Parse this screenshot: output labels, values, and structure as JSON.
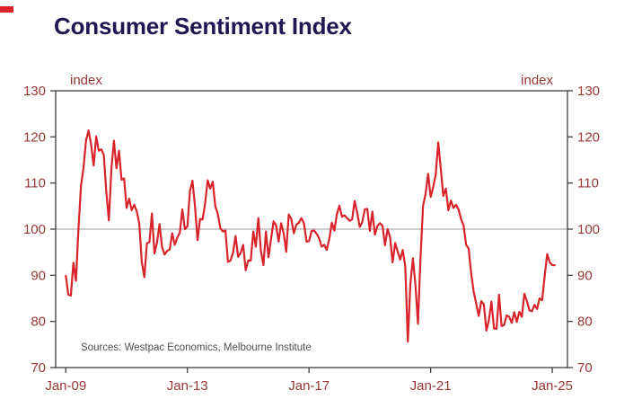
{
  "page": {
    "title": "Consumer Sentiment Index"
  },
  "chart": {
    "left_axis_label": "index",
    "right_axis_label": "index",
    "source": "Sources: Westpac Economics, Melbourne Institute"
  },
  "colors": {
    "title": "#1f1752",
    "line": "#d8232a",
    "tick_label": "#953735",
    "axis": "#3f3f3f",
    "reference_line": "#9a9a9a",
    "source_text": "#4d4d4f",
    "accent_mark": "#d8232a"
  },
  "chart_data": {
    "type": "line",
    "title": "Consumer Sentiment Index",
    "ylabel": "index",
    "ylim": [
      70,
      130
    ],
    "y_ticks": [
      70,
      80,
      90,
      100,
      110,
      120,
      130
    ],
    "x_ticks": [
      {
        "label": "Jan-09",
        "month": 0
      },
      {
        "label": "Jan-13",
        "month": 48
      },
      {
        "label": "Jan-17",
        "month": 96
      },
      {
        "label": "Jan-21",
        "month": 144
      },
      {
        "label": "Jan-25",
        "month": 192
      }
    ],
    "reference_line": 100,
    "grid": false,
    "legend": "none",
    "frequency": "monthly",
    "x_start": "2009-01",
    "source": "Sources: Westpac Economics, Melbourne Institute",
    "series": [
      {
        "name": "Consumer Sentiment Index",
        "color": "#d8232a",
        "values": [
          89.9,
          85.8,
          85.6,
          92.7,
          88.8,
          100.1,
          109.4,
          113.4,
          119.3,
          121.4,
          118.3,
          113.8,
          120.1,
          117.0,
          117.3,
          116.1,
          108.0,
          101.9,
          113.1,
          119.2,
          113.2,
          117.0,
          110.7,
          111.0,
          104.6,
          106.6,
          104.1,
          105.3,
          103.9,
          101.2,
          92.8,
          89.6,
          96.9,
          97.2,
          103.4,
          94.7,
          97.1,
          101.1,
          96.1,
          94.5,
          95.3,
          95.6,
          99.1,
          96.6,
          98.2,
          99.2,
          104.3,
          100.0,
          100.6,
          108.3,
          110.5,
          104.9,
          97.6,
          102.2,
          102.1,
          105.7,
          110.6,
          108.8,
          110.3,
          105.0,
          103.3,
          100.2,
          99.5,
          99.7,
          92.9,
          93.2,
          94.9,
          98.5,
          94.0,
          94.8,
          96.6,
          91.1,
          93.2,
          93.2,
          99.5,
          96.2,
          102.4,
          95.3,
          92.2,
          99.5,
          93.9,
          97.8,
          101.7,
          100.8,
          97.3,
          101.3,
          99.1,
          95.1,
          103.2,
          102.2,
          99.1,
          101.0,
          101.4,
          102.4,
          101.3,
          97.3,
          97.4,
          99.6,
          99.7,
          99.0,
          98.0,
          96.2,
          96.6,
          95.5,
          97.9,
          101.4,
          99.7,
          103.3,
          105.1,
          102.7,
          103.0,
          102.4,
          101.8,
          102.1,
          106.1,
          103.6,
          100.5,
          101.5,
          104.3,
          104.4,
          99.6,
          103.8,
          98.8,
          100.7,
          101.3,
          100.7,
          96.5,
          100.0,
          98.2,
          92.8,
          97.0,
          95.1,
          93.4,
          95.5,
          91.9,
          75.6,
          88.1,
          93.7,
          87.9,
          79.5,
          93.8,
          105.0,
          107.7,
          112.0,
          107.0,
          109.1,
          111.8,
          118.8,
          113.1,
          107.2,
          108.8,
          104.1,
          106.2,
          104.6,
          105.3,
          104.3,
          102.2,
          100.8,
          96.6,
          95.8,
          90.4,
          86.4,
          83.8,
          81.2,
          84.4,
          83.7,
          78.0,
          80.3,
          84.3,
          78.5,
          78.4,
          85.8,
          79.0,
          79.2,
          81.3,
          81.0,
          79.7,
          82.0,
          79.9,
          82.1,
          81.0,
          86.0,
          84.4,
          82.4,
          82.2,
          83.6,
          82.7,
          85.0,
          84.6,
          89.8,
          94.6,
          92.8,
          92.2,
          92.2
        ]
      }
    ]
  }
}
